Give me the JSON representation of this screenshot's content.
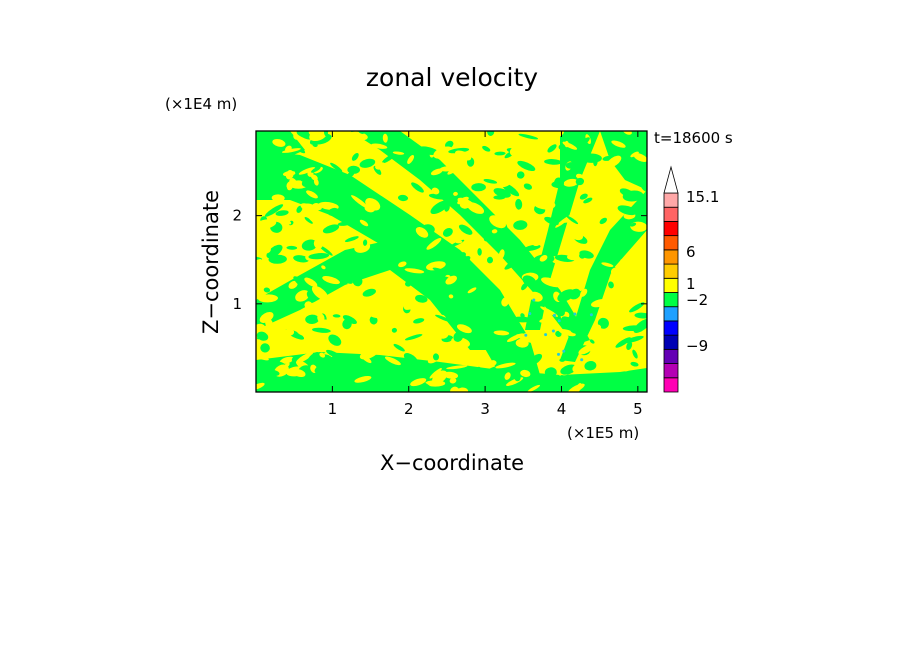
{
  "chart_data": {
    "type": "heatmap",
    "title": "zonal velocity",
    "xlabel": "X−coordinate",
    "ylabel": "Z−coordinate",
    "x_scale_label": "(×1E5 m)",
    "y_scale_label": "(×1E4 m)",
    "time_label": "t=18600 s",
    "xlim": [
      0,
      5.12
    ],
    "ylim": [
      0,
      2.96
    ],
    "x_ticks": [
      1,
      2,
      3,
      4,
      5
    ],
    "x_tick_labels": [
      "1",
      "2",
      "3",
      "4",
      "5"
    ],
    "y_ticks": [
      1,
      2
    ],
    "y_tick_labels": [
      "1",
      "2"
    ],
    "field_colors": {
      "positive": "#ffff00",
      "negative": "#00ff44",
      "accent": "#22ccdd"
    },
    "colorbar": {
      "labels": [
        "15.1",
        "6",
        "1",
        "−2",
        "−9"
      ],
      "colors": [
        "#ff00b4",
        "#b400b4",
        "#6400b4",
        "#0000b4",
        "#0000ff",
        "#1ea0ff",
        "#00ff44",
        "#ffff00",
        "#ffcc00",
        "#ff9600",
        "#ff5a00",
        "#ff0000",
        "#ff6464",
        "#ffa8a8",
        "#ffffff"
      ]
    }
  }
}
